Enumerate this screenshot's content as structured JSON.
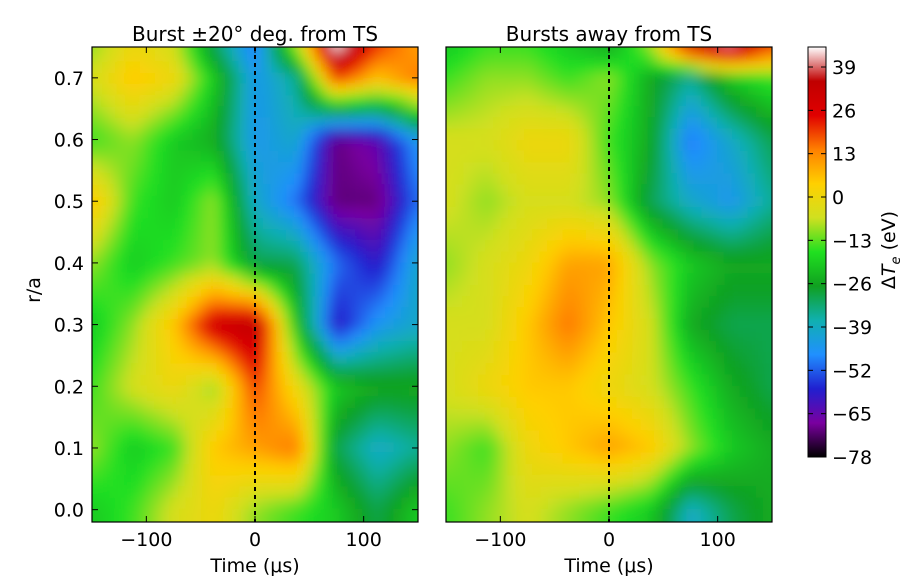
{
  "chart_data": [
    {
      "type": "heatmap",
      "title": "Burst ±20° deg. from TS",
      "xlabel": "Time (μs)",
      "ylabel": "r/a",
      "xlim": [
        -150,
        150
      ],
      "ylim": [
        -0.02,
        0.75
      ],
      "xticks": [
        -100,
        0,
        100
      ],
      "xtick_labels": [
        "−100",
        "0",
        "100"
      ],
      "yticks": [
        0.0,
        0.1,
        0.2,
        0.3,
        0.4,
        0.5,
        0.6,
        0.7
      ],
      "ytick_labels": [
        "0.0",
        "0.1",
        "0.2",
        "0.3",
        "0.4",
        "0.5",
        "0.6",
        "0.7"
      ],
      "reference_line_x": 0,
      "x": [
        -150,
        -112.5,
        -75,
        -37.5,
        0,
        37.5,
        75,
        112.5,
        150
      ],
      "y": [
        0.0,
        0.1,
        0.2,
        0.3,
        0.4,
        0.5,
        0.6,
        0.7,
        0.75
      ],
      "z": [
        [
          -20,
          -15,
          -5,
          0,
          -10,
          -15,
          -20,
          -30,
          -20
        ],
        [
          -10,
          -20,
          -15,
          5,
          10,
          15,
          -30,
          -40,
          -35
        ],
        [
          -15,
          -5,
          0,
          -10,
          20,
          0,
          -20,
          -25,
          -25
        ],
        [
          -20,
          -10,
          5,
          30,
          35,
          -20,
          -60,
          -45,
          -40
        ],
        [
          -10,
          -20,
          -15,
          -10,
          -30,
          -30,
          -50,
          -60,
          -40
        ],
        [
          5,
          -15,
          -20,
          -10,
          -40,
          -50,
          -70,
          -70,
          -50
        ],
        [
          -15,
          -10,
          -20,
          -25,
          -45,
          -40,
          -70,
          -65,
          -45
        ],
        [
          -5,
          5,
          0,
          -20,
          -45,
          -35,
          20,
          5,
          15
        ],
        [
          -10,
          0,
          -5,
          -30,
          -50,
          -10,
          45,
          20,
          10
        ]
      ]
    },
    {
      "type": "heatmap",
      "title": "Bursts away from TS",
      "xlabel": "Time (μs)",
      "ylabel": "",
      "xlim": [
        -150,
        150
      ],
      "ylim": [
        -0.02,
        0.75
      ],
      "xticks": [
        -100,
        0,
        100
      ],
      "xtick_labels": [
        "−100",
        "0",
        "100"
      ],
      "reference_line_x": 0,
      "x": [
        -150,
        -112.5,
        -75,
        -37.5,
        0,
        37.5,
        75,
        112.5,
        150
      ],
      "y": [
        0.0,
        0.1,
        0.2,
        0.3,
        0.4,
        0.5,
        0.6,
        0.7,
        0.75
      ],
      "z": [
        [
          -15,
          -10,
          -5,
          -10,
          -15,
          -20,
          -40,
          -30,
          -25
        ],
        [
          -10,
          -15,
          0,
          5,
          10,
          5,
          -10,
          -20,
          -25
        ],
        [
          -5,
          0,
          5,
          5,
          0,
          -5,
          -15,
          -25,
          -30
        ],
        [
          -5,
          -5,
          5,
          15,
          5,
          -5,
          -25,
          -30,
          -30
        ],
        [
          -10,
          -5,
          0,
          10,
          10,
          -10,
          -20,
          -25,
          -25
        ],
        [
          -5,
          -10,
          -5,
          -5,
          -10,
          -30,
          -40,
          -45,
          -35
        ],
        [
          -5,
          -5,
          0,
          0,
          -15,
          -25,
          -50,
          -40,
          -30
        ],
        [
          -15,
          -10,
          -10,
          -15,
          -10,
          -25,
          -35,
          -20,
          -15
        ],
        [
          -20,
          -15,
          -15,
          -20,
          -25,
          -10,
          30,
          40,
          20
        ]
      ]
    }
  ],
  "colorbar": {
    "label": "ΔT_e (eV)",
    "label_main": "Δ",
    "label_var": "T",
    "label_sub": "e",
    "label_unit": " (eV)",
    "min": -78,
    "max": 45,
    "ticks": [
      39,
      26,
      13,
      0,
      -13,
      -26,
      -39,
      -52,
      -65,
      -78
    ],
    "tick_labels": [
      "39",
      "26",
      "13",
      "0",
      "−13",
      "−26",
      "−39",
      "−52",
      "−65",
      "−78"
    ]
  },
  "colors": {
    "reference_line": "#000000",
    "colormap": [
      "#000000",
      "#7a00a0",
      "#2020d0",
      "#2090ff",
      "#10b0b0",
      "#10a020",
      "#20e020",
      "#d0e020",
      "#ffd000",
      "#ff8000",
      "#e00000",
      "#c00000",
      "#ffffff"
    ]
  }
}
